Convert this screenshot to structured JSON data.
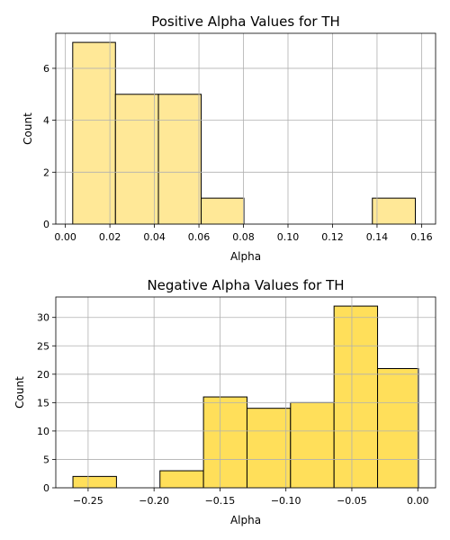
{
  "chart_data": [
    {
      "type": "bar",
      "title": "Positive Alpha Values for TH",
      "xlabel": "Alpha",
      "ylabel": "Count",
      "xlim": [
        -0.0043,
        0.1663
      ],
      "ylim": [
        0,
        7.35
      ],
      "xticks": [
        0.0,
        0.02,
        0.04,
        0.06,
        0.08,
        0.1,
        0.12,
        0.14,
        0.16
      ],
      "xtick_labels": [
        "0.00",
        "0.02",
        "0.04",
        "0.06",
        "0.08",
        "0.10",
        "0.12",
        "0.14",
        "0.16"
      ],
      "yticks": [
        0,
        2,
        4,
        6
      ],
      "ytick_labels": [
        "0",
        "2",
        "4",
        "6"
      ],
      "grid": true,
      "bar_color": "#ffe897",
      "bins": [
        {
          "x0": 0.0033,
          "x1": 0.0225,
          "count": 7
        },
        {
          "x0": 0.0225,
          "x1": 0.0418,
          "count": 5
        },
        {
          "x0": 0.0418,
          "x1": 0.061,
          "count": 5
        },
        {
          "x0": 0.061,
          "x1": 0.0802,
          "count": 1
        },
        {
          "x0": 0.1379,
          "x1": 0.1572,
          "count": 1
        }
      ]
    },
    {
      "type": "bar",
      "title": "Negative Alpha Values for TH",
      "xlabel": "Alpha",
      "ylabel": "Count",
      "xlim": [
        -0.2745,
        0.0135
      ],
      "ylim": [
        0,
        33.6
      ],
      "xticks": [
        -0.25,
        -0.2,
        -0.15,
        -0.1,
        -0.05,
        0.0
      ],
      "xtick_labels": [
        "−0.25",
        "−0.20",
        "−0.15",
        "−0.10",
        "−0.05",
        "0.00"
      ],
      "yticks": [
        0,
        5,
        10,
        15,
        20,
        25,
        30
      ],
      "ytick_labels": [
        "0",
        "5",
        "10",
        "15",
        "20",
        "25",
        "30"
      ],
      "grid": true,
      "bar_color": "#ffdf5a",
      "bins": [
        {
          "x0": -0.2615,
          "x1": -0.2285,
          "count": 2
        },
        {
          "x0": -0.2285,
          "x1": -0.1955,
          "count": 0
        },
        {
          "x0": -0.1955,
          "x1": -0.1625,
          "count": 3
        },
        {
          "x0": -0.1625,
          "x1": -0.1295,
          "count": 16
        },
        {
          "x0": -0.1295,
          "x1": -0.0965,
          "count": 14
        },
        {
          "x0": -0.0965,
          "x1": -0.0635,
          "count": 15
        },
        {
          "x0": -0.0635,
          "x1": -0.0305,
          "count": 32
        },
        {
          "x0": -0.0305,
          "x1": 0.0005,
          "count": 21
        }
      ]
    }
  ]
}
